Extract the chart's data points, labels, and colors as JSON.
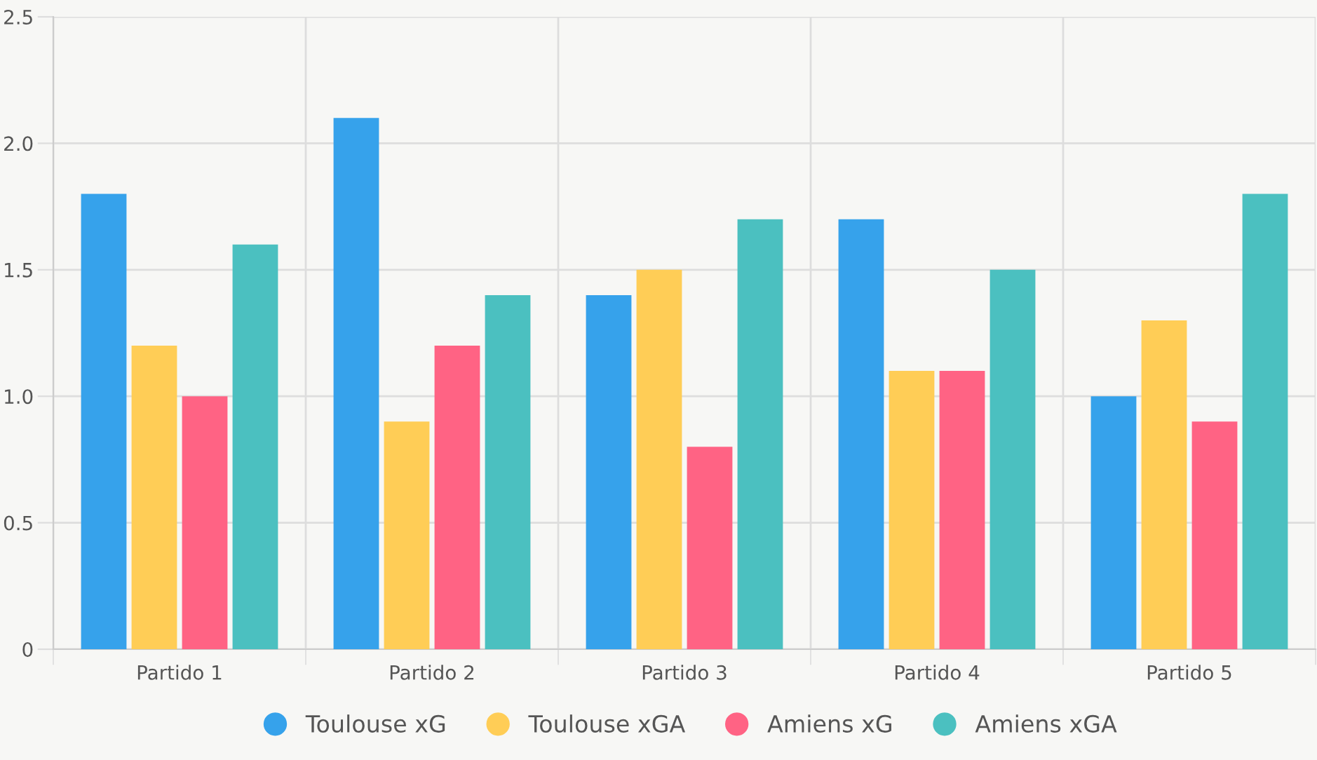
{
  "chart_data": {
    "type": "bar",
    "categories": [
      "Partido 1",
      "Partido 2",
      "Partido 3",
      "Partido 4",
      "Partido 5"
    ],
    "series": [
      {
        "name": "Toulouse xG",
        "color": "#36a2eb",
        "values": [
          1.8,
          2.1,
          1.4,
          1.7,
          1.0
        ]
      },
      {
        "name": "Toulouse xGA",
        "color": "#ffcd56",
        "values": [
          1.2,
          0.9,
          1.5,
          1.1,
          1.3
        ]
      },
      {
        "name": "Amiens xG",
        "color": "#ff6384",
        "values": [
          1.0,
          1.2,
          0.8,
          1.1,
          0.9
        ]
      },
      {
        "name": "Amiens xGA",
        "color": "#4bc0c0",
        "values": [
          1.6,
          1.4,
          1.7,
          1.5,
          1.8
        ]
      }
    ],
    "ylim": [
      0,
      2.5
    ],
    "yticks": [
      0,
      0.5,
      {
        "value": 1,
        "label": "1.0"
      },
      1.5,
      {
        "value": 2,
        "label": "2.0"
      },
      2.5
    ],
    "grid": true,
    "legend": "bottom"
  }
}
